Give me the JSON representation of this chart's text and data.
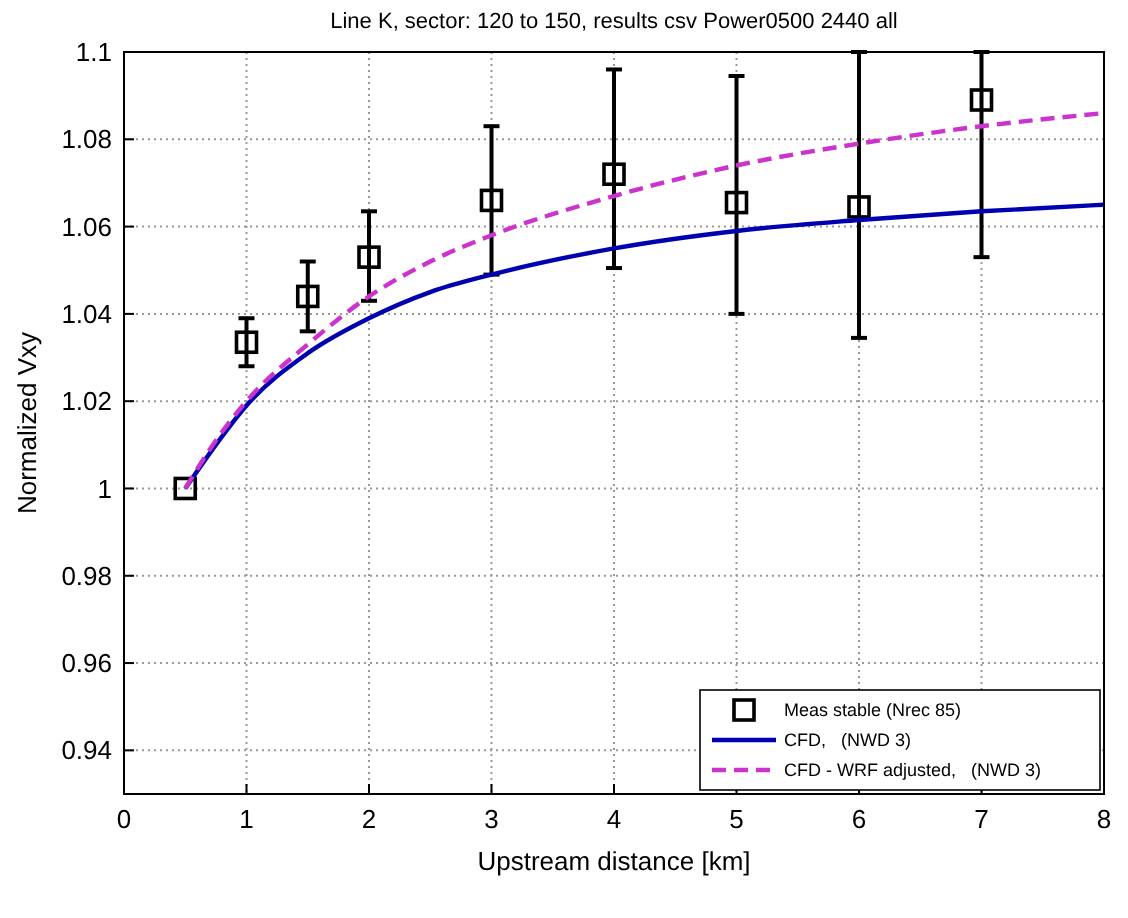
{
  "chart_data": {
    "type": "line",
    "title": "Line K, sector: 120 to 150, results csv Power0500 2440 all",
    "xlabel": "Upstream distance [km]",
    "ylabel": "Normalized Vxy",
    "xlim": [
      0,
      8
    ],
    "ylim": [
      0.93,
      1.1
    ],
    "xticks": [
      0,
      1,
      2,
      3,
      4,
      5,
      6,
      7,
      8
    ],
    "yticks": [
      0.94,
      0.96,
      0.98,
      1,
      1.02,
      1.04,
      1.06,
      1.08,
      1.1
    ],
    "grid": true,
    "legend": "bottom right",
    "series": [
      {
        "name": "Meas stable (Nrec 85)",
        "type": "scatter",
        "marker": "square",
        "color": "#000000",
        "x": [
          0.5,
          1,
          1.5,
          2,
          3,
          4,
          5,
          6,
          7
        ],
        "values": [
          1.0,
          1.0335,
          1.044,
          1.053,
          1.066,
          1.072,
          1.0655,
          1.0645,
          1.089
        ],
        "errors": [
          null,
          [
            1.028,
            1.039
          ],
          [
            1.036,
            1.052
          ],
          [
            1.043,
            1.0635
          ],
          [
            1.049,
            1.083
          ],
          [
            1.0505,
            1.096
          ],
          [
            1.04,
            1.0945
          ],
          [
            1.0345,
            1.1
          ],
          [
            1.053,
            1.1
          ]
        ]
      },
      {
        "name": "CFD,   (NWD 3)",
        "line_style": "solid",
        "color": "#0000b0",
        "x": [
          0.5,
          0.75,
          1,
          1.5,
          2,
          2.5,
          3,
          4,
          5,
          6,
          7,
          8
        ],
        "values": [
          1.0,
          1.01,
          1.019,
          1.031,
          1.039,
          1.045,
          1.049,
          1.055,
          1.059,
          1.0615,
          1.0635,
          1.065
        ]
      },
      {
        "name": "CFD - WRF adjusted,   (NWD 3)",
        "line_style": "dashed",
        "color": "#cc33cc",
        "x": [
          0.5,
          0.75,
          1,
          1.5,
          2,
          2.5,
          3,
          4,
          5,
          6,
          7,
          8
        ],
        "values": [
          1.0,
          1.011,
          1.02,
          1.033,
          1.044,
          1.052,
          1.058,
          1.067,
          1.074,
          1.079,
          1.083,
          1.086
        ]
      }
    ]
  }
}
